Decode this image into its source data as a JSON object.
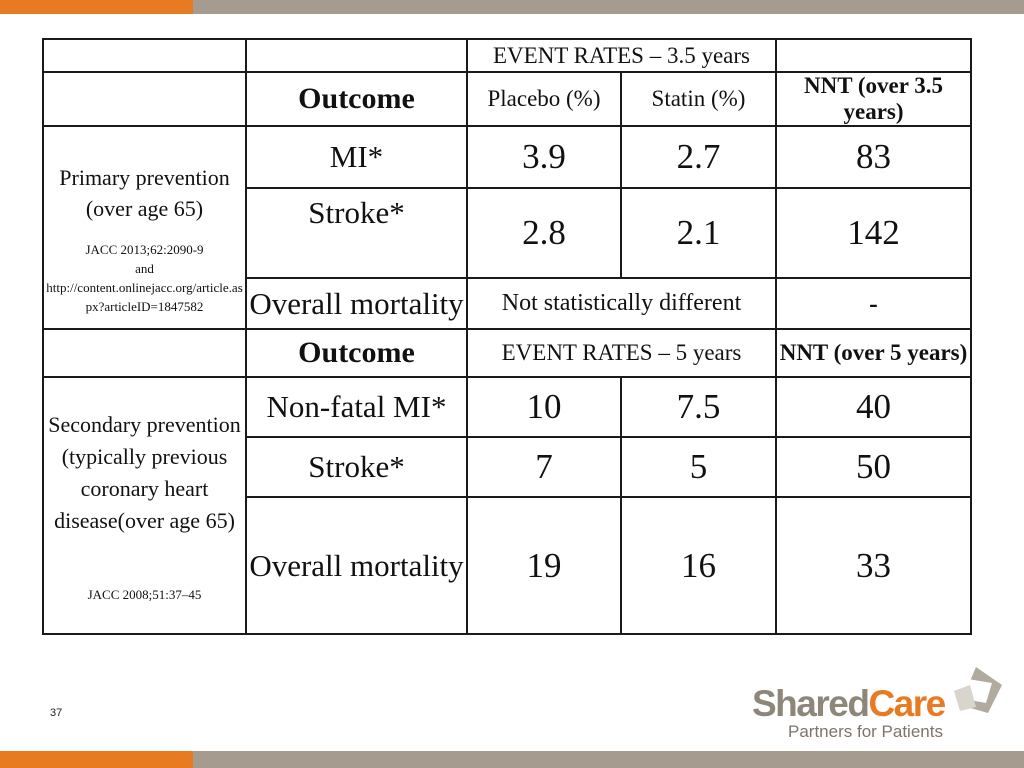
{
  "colors": {
    "accent": "#e87a22",
    "secondary": "#a59c8f",
    "border": "#1a1a1a"
  },
  "table": {
    "header": {
      "event_rates_35": "EVENT RATES – 3.5 years",
      "outcome": "Outcome",
      "placebo": "Placebo (%)",
      "statin": "Statin (%)",
      "nnt_35": "NNT (over 3.5 years)"
    },
    "primary": {
      "title_line1": "Primary prevention",
      "title_line2": "(over age 65)",
      "ref_line1": "JACC 2013;62:2090-9",
      "ref_line2": "and",
      "ref_line3": "http://content.onlinejacc.org/article.as",
      "ref_line4": "px?articleID=1847582",
      "rows": [
        {
          "outcome": "MI*",
          "placebo": "3.9",
          "statin": "2.7",
          "nnt": "83"
        },
        {
          "outcome": "Stroke*",
          "placebo": "2.8",
          "statin": "2.1",
          "nnt": "142"
        },
        {
          "outcome": "Overall mortality",
          "note": "Not statistically different",
          "nnt": "-"
        }
      ]
    },
    "mid_header": {
      "outcome": "Outcome",
      "event_rates_5": "EVENT RATES – 5 years",
      "nnt_5": "NNT (over 5 years)"
    },
    "secondary": {
      "title_line1": "Secondary prevention",
      "title_line2": "(typically previous",
      "title_line3": "coronary heart",
      "title_line4": "disease(over age 65)",
      "ref": "JACC 2008;51:37–45",
      "rows": [
        {
          "outcome": "Non-fatal MI*",
          "placebo": "10",
          "statin": "7.5",
          "nnt": "40"
        },
        {
          "outcome": "Stroke*",
          "placebo": "7",
          "statin": "5",
          "nnt": "50"
        },
        {
          "outcome": "Overall mortality",
          "placebo": "19",
          "statin": "16",
          "nnt": "33"
        }
      ]
    }
  },
  "footer": {
    "slide_number": "37",
    "logo_shared": "Shared",
    "logo_care": "Care",
    "logo_tagline": "Partners for Patients"
  }
}
